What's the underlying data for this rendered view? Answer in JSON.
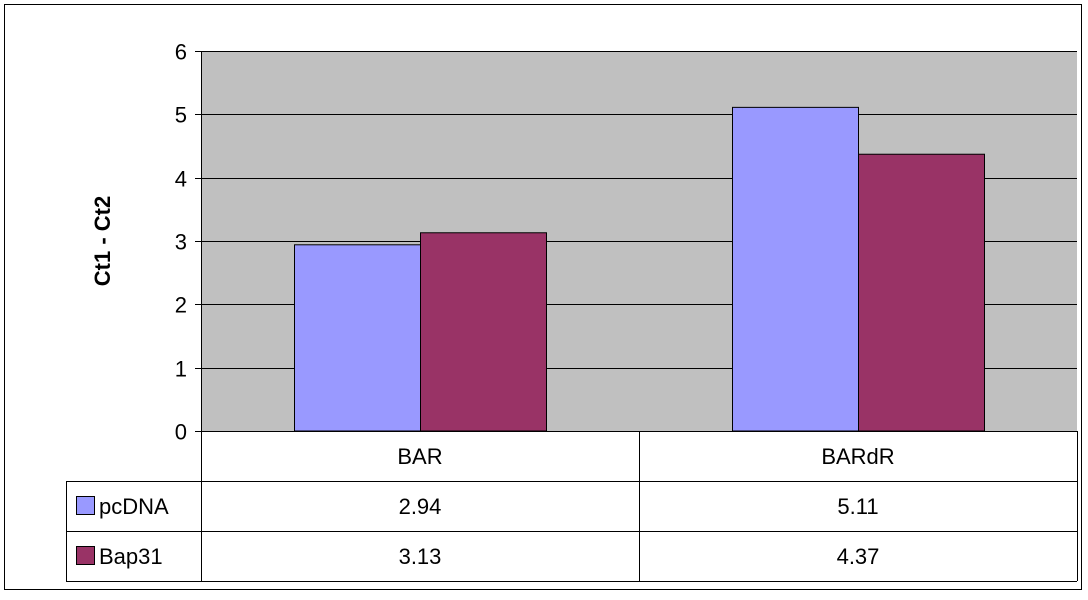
{
  "chart_data": {
    "type": "bar",
    "title": "",
    "xlabel": "",
    "ylabel": "Ct1 - Ct2",
    "ylim": [
      0,
      6
    ],
    "yticks": [
      0,
      1,
      2,
      3,
      4,
      5,
      6
    ],
    "grid": true,
    "legend_placement": "data-table-left",
    "data_table": true,
    "categories": [
      "BAR",
      "BARdR"
    ],
    "series": [
      {
        "name": "pcDNA",
        "values": [
          2.94,
          5.11
        ],
        "labels": [
          "2.94",
          "5.11"
        ],
        "color": "#9999ff"
      },
      {
        "name": "Bap31",
        "values": [
          3.13,
          4.37
        ],
        "labels": [
          "3.13",
          "4.37"
        ],
        "color": "#993366"
      }
    ],
    "plot_background": "#c0c0c0"
  }
}
